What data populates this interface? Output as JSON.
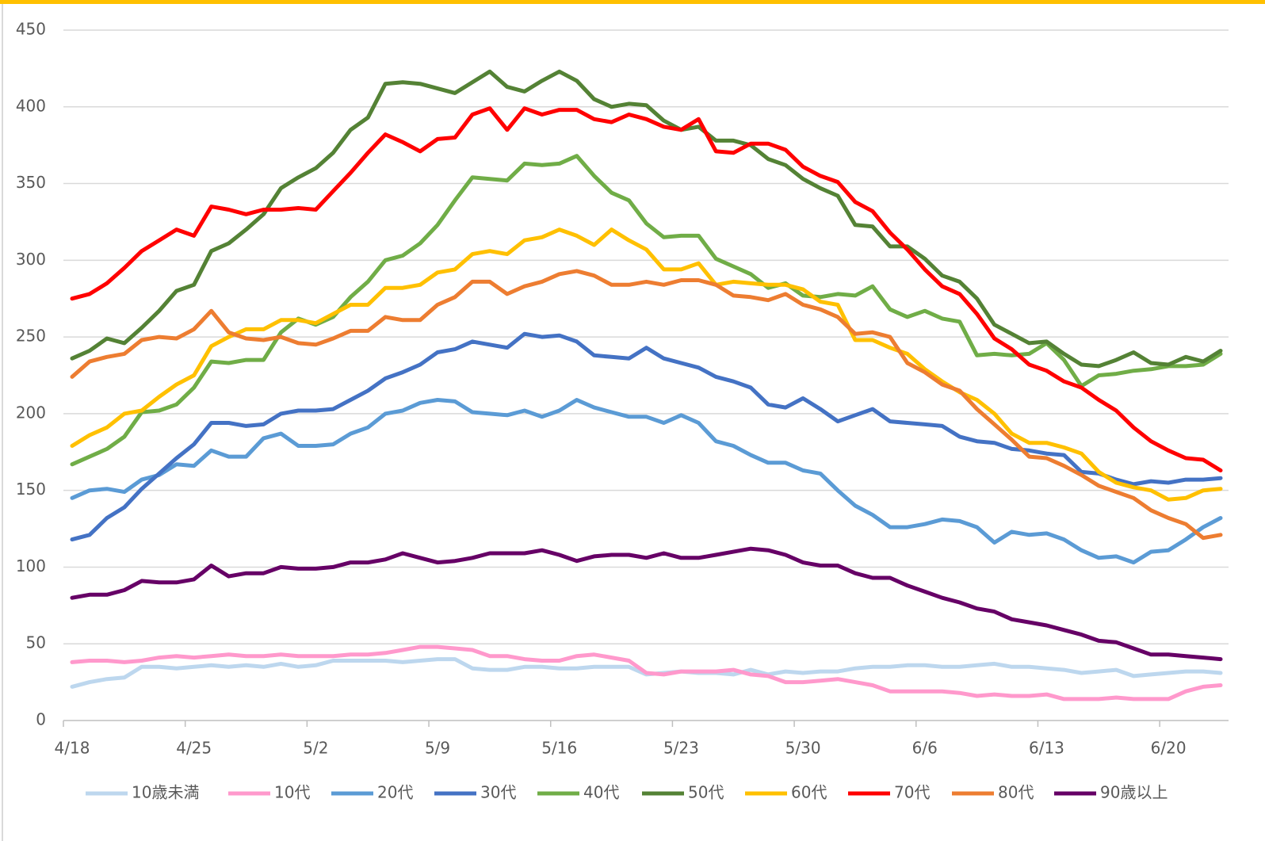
{
  "chart_data": {
    "type": "line",
    "categories": [
      "4/18",
      null,
      null,
      null,
      null,
      null,
      null,
      "4/25",
      null,
      null,
      null,
      null,
      null,
      null,
      "5/2",
      null,
      null,
      null,
      null,
      null,
      null,
      "5/9",
      null,
      null,
      null,
      null,
      null,
      null,
      "5/16",
      null,
      null,
      null,
      null,
      null,
      null,
      "5/23",
      null,
      null,
      null,
      null,
      null,
      null,
      "5/30",
      null,
      null,
      null,
      null,
      null,
      null,
      "6/6",
      null,
      null,
      null,
      null,
      null,
      null,
      "6/13",
      null,
      null,
      null,
      null,
      null,
      null,
      "6/20",
      null,
      null,
      null
    ],
    "ylim": [
      0,
      450
    ],
    "yticks": [
      0,
      50,
      100,
      150,
      200,
      250,
      300,
      350,
      400,
      450
    ],
    "grid": true,
    "legend": "bottom",
    "series": [
      {
        "name": "10歳未満",
        "color": "#bdd7ee",
        "values": [
          22,
          25,
          27,
          28,
          35,
          35,
          34,
          35,
          36,
          35,
          36,
          35,
          37,
          35,
          36,
          39,
          39,
          39,
          39,
          38,
          39,
          40,
          40,
          34,
          33,
          33,
          35,
          35,
          34,
          34,
          35,
          35,
          35,
          30,
          31,
          32,
          31,
          31,
          30,
          33,
          30,
          32,
          31,
          32,
          32,
          34,
          35,
          35,
          36,
          36,
          35,
          35,
          36,
          37,
          35,
          35,
          34,
          33,
          31,
          32,
          33,
          29,
          30,
          31,
          32,
          32,
          31
        ]
      },
      {
        "name": "10代",
        "color": "#ff99cc",
        "values": [
          38,
          39,
          39,
          38,
          39,
          41,
          42,
          41,
          42,
          43,
          42,
          42,
          43,
          42,
          42,
          42,
          43,
          43,
          44,
          46,
          48,
          48,
          47,
          46,
          42,
          42,
          40,
          39,
          39,
          42,
          43,
          41,
          39,
          31,
          30,
          32,
          32,
          32,
          33,
          30,
          29,
          25,
          25,
          26,
          27,
          25,
          23,
          19,
          19,
          19,
          19,
          18,
          16,
          17,
          16,
          16,
          17,
          14,
          14,
          14,
          15,
          14,
          14,
          14,
          19,
          22,
          23
        ]
      },
      {
        "name": "20代",
        "color": "#5b9bd5",
        "values": [
          145,
          150,
          151,
          149,
          157,
          160,
          167,
          166,
          176,
          172,
          172,
          184,
          187,
          179,
          179,
          180,
          187,
          191,
          200,
          202,
          207,
          209,
          208,
          201,
          200,
          199,
          202,
          198,
          202,
          209,
          204,
          201,
          198,
          198,
          194,
          199,
          194,
          182,
          179,
          173,
          168,
          168,
          163,
          161,
          150,
          140,
          134,
          126,
          126,
          128,
          131,
          130,
          126,
          116,
          123,
          121,
          122,
          118,
          111,
          106,
          107,
          103,
          110,
          111,
          118,
          126,
          132
        ]
      },
      {
        "name": "30代",
        "color": "#4472c4",
        "values": [
          118,
          121,
          132,
          139,
          151,
          161,
          171,
          180,
          194,
          194,
          192,
          193,
          200,
          202,
          202,
          203,
          209,
          215,
          223,
          227,
          232,
          240,
          242,
          247,
          245,
          243,
          252,
          250,
          251,
          247,
          238,
          237,
          236,
          243,
          236,
          233,
          230,
          224,
          221,
          217,
          206,
          204,
          210,
          203,
          195,
          199,
          203,
          195,
          194,
          193,
          192,
          185,
          182,
          181,
          177,
          176,
          174,
          173,
          162,
          161,
          157,
          154,
          156,
          155,
          157,
          157,
          158
        ]
      },
      {
        "name": "40代",
        "color": "#70ad47",
        "values": [
          167,
          172,
          177,
          185,
          201,
          202,
          206,
          217,
          234,
          233,
          235,
          235,
          253,
          262,
          258,
          263,
          276,
          286,
          300,
          303,
          311,
          323,
          339,
          354,
          353,
          352,
          363,
          362,
          363,
          368,
          355,
          344,
          339,
          324,
          315,
          316,
          316,
          301,
          296,
          291,
          282,
          285,
          277,
          276,
          278,
          277,
          283,
          268,
          263,
          267,
          262,
          260,
          238,
          239,
          238,
          239,
          246,
          235,
          218,
          225,
          226,
          228,
          229,
          231,
          231,
          232,
          239
        ]
      },
      {
        "name": "50代",
        "color": "#548235",
        "values": [
          236,
          241,
          249,
          246,
          256,
          267,
          280,
          284,
          306,
          311,
          320,
          330,
          347,
          354,
          360,
          370,
          385,
          393,
          415,
          416,
          415,
          412,
          409,
          416,
          423,
          413,
          410,
          417,
          423,
          417,
          405,
          400,
          402,
          401,
          391,
          385,
          387,
          378,
          378,
          375,
          366,
          362,
          353,
          347,
          342,
          323,
          322,
          309,
          309,
          301,
          290,
          286,
          275,
          258,
          252,
          246,
          247,
          239,
          232,
          231,
          235,
          240,
          233,
          232,
          237,
          234,
          241
        ]
      },
      {
        "name": "60代",
        "color": "#ffc000",
        "values": [
          179,
          186,
          191,
          200,
          202,
          211,
          219,
          225,
          244,
          250,
          255,
          255,
          261,
          261,
          259,
          265,
          271,
          271,
          282,
          282,
          284,
          292,
          294,
          304,
          306,
          304,
          313,
          315,
          320,
          316,
          310,
          320,
          313,
          307,
          294,
          294,
          298,
          284,
          286,
          285,
          284,
          284,
          281,
          273,
          271,
          248,
          248,
          243,
          239,
          229,
          221,
          214,
          209,
          200,
          187,
          181,
          181,
          178,
          174,
          162,
          155,
          152,
          150,
          144,
          145,
          150,
          151
        ]
      },
      {
        "name": "70代",
        "color": "#ff0000",
        "values": [
          275,
          278,
          285,
          295,
          306,
          313,
          320,
          316,
          335,
          333,
          330,
          333,
          333,
          334,
          333,
          345,
          357,
          370,
          382,
          377,
          371,
          379,
          380,
          395,
          399,
          385,
          399,
          395,
          398,
          398,
          392,
          390,
          395,
          392,
          387,
          385,
          392,
          371,
          370,
          376,
          376,
          372,
          361,
          355,
          351,
          338,
          332,
          318,
          307,
          294,
          283,
          278,
          265,
          249,
          242,
          232,
          228,
          221,
          217,
          209,
          202,
          191,
          182,
          176,
          171,
          170,
          163
        ]
      },
      {
        "name": "80代",
        "color": "#ed7d31",
        "values": [
          224,
          234,
          237,
          239,
          248,
          250,
          249,
          255,
          267,
          253,
          249,
          248,
          250,
          246,
          245,
          249,
          254,
          254,
          263,
          261,
          261,
          271,
          276,
          286,
          286,
          278,
          283,
          286,
          291,
          293,
          290,
          284,
          284,
          286,
          284,
          287,
          287,
          284,
          277,
          276,
          274,
          278,
          271,
          268,
          263,
          252,
          253,
          250,
          233,
          227,
          219,
          215,
          203,
          193,
          183,
          172,
          171,
          166,
          160,
          153,
          149,
          145,
          137,
          132,
          128,
          119,
          121
        ]
      },
      {
        "name": "90歳以上",
        "color": "#660066",
        "values": [
          80,
          82,
          82,
          85,
          91,
          90,
          90,
          92,
          101,
          94,
          96,
          96,
          100,
          99,
          99,
          100,
          103,
          103,
          105,
          109,
          106,
          103,
          104,
          106,
          109,
          109,
          109,
          111,
          108,
          104,
          107,
          108,
          108,
          106,
          109,
          106,
          106,
          108,
          110,
          112,
          111,
          108,
          103,
          101,
          101,
          96,
          93,
          93,
          88,
          84,
          80,
          77,
          73,
          71,
          66,
          64,
          62,
          59,
          56,
          52,
          51,
          47,
          43,
          43,
          42,
          41,
          40
        ]
      }
    ]
  }
}
